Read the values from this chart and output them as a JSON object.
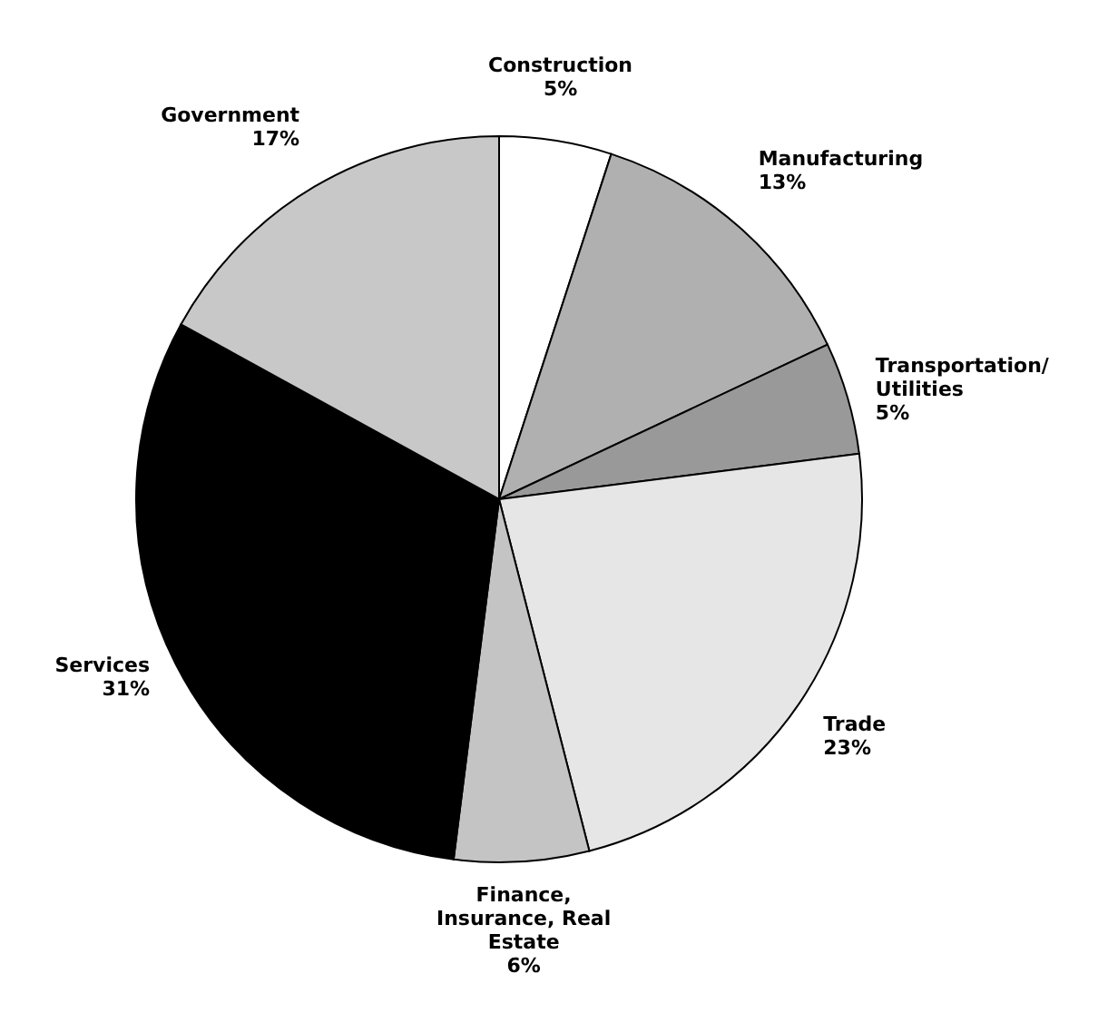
{
  "chart_data": {
    "type": "pie",
    "categories": [
      "Construction",
      "Manufacturing",
      "Transportation/Utilities",
      "Trade",
      "Finance, Insurance, Real Estate",
      "Services",
      "Government"
    ],
    "values": [
      5,
      13,
      5,
      23,
      6,
      31,
      17
    ],
    "colors": [
      "#ffffff",
      "#b0b0b0",
      "#999999",
      "#e6e6e6",
      "#c4c4c4",
      "#000000",
      "#c8c8c8"
    ],
    "value_labels": [
      "5%",
      "13%",
      "5%",
      "23%",
      "6%",
      "31%",
      "17%"
    ],
    "legend": false
  }
}
